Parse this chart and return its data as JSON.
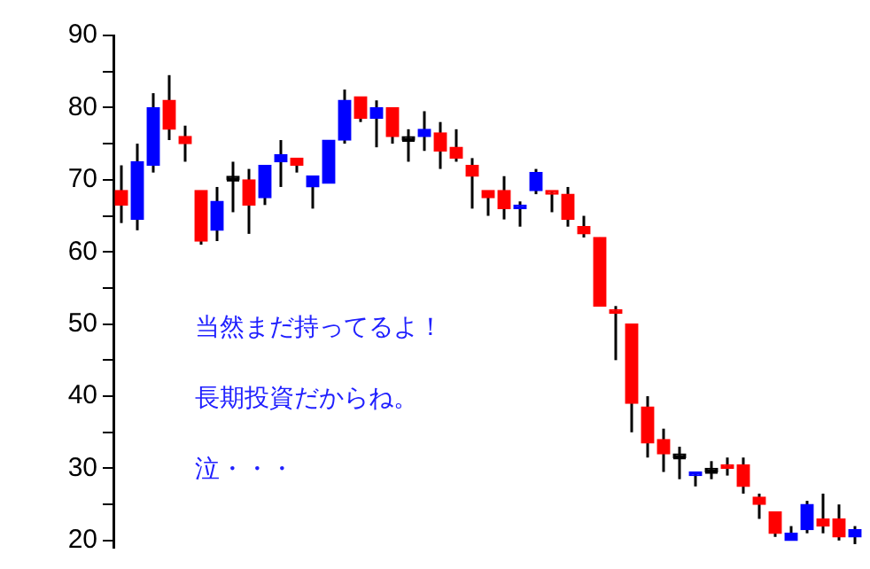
{
  "chart_data": {
    "type": "candlestick",
    "categories": [
      null,
      null,
      null,
      null,
      null,
      null,
      null,
      null,
      null,
      null,
      null,
      null,
      null,
      null,
      null,
      null,
      null,
      null,
      null,
      null,
      null,
      null,
      null,
      null,
      null,
      null,
      null,
      null,
      null,
      null,
      null,
      null,
      null,
      null,
      null,
      null,
      null,
      null,
      null,
      null,
      null,
      null,
      null,
      null,
      null,
      null,
      null
    ],
    "ohlc": [
      [
        68.5,
        72,
        64,
        66.5
      ],
      [
        64.5,
        75,
        63,
        72.5
      ],
      [
        72,
        82,
        71,
        80
      ],
      [
        81,
        84.5,
        75.5,
        77
      ],
      [
        76,
        77.5,
        72.5,
        75
      ],
      [
        68.5,
        68.5,
        61,
        61.5
      ],
      [
        63,
        69,
        61.5,
        67
      ],
      [
        70,
        72.5,
        65.5,
        70
      ],
      [
        70,
        71.5,
        62.5,
        66.5
      ],
      [
        67.5,
        72,
        66.5,
        72
      ],
      [
        72.5,
        75.5,
        69,
        73.5
      ],
      [
        73,
        73,
        71,
        72
      ],
      [
        69,
        70.5,
        66,
        70.5
      ],
      [
        69.5,
        75.5,
        69.5,
        75.5
      ],
      [
        75.5,
        82.5,
        75,
        81
      ],
      [
        81.5,
        81.5,
        78,
        78.5
      ],
      [
        78.5,
        81,
        74.5,
        80
      ],
      [
        80,
        80,
        75,
        76
      ],
      [
        75.5,
        77,
        72.5,
        75.5
      ],
      [
        76,
        79.5,
        74,
        77
      ],
      [
        76.5,
        78,
        71.5,
        74
      ],
      [
        74.5,
        77,
        72.5,
        73
      ],
      [
        72,
        73,
        66,
        70.5
      ],
      [
        68.5,
        68.5,
        65,
        67.5
      ],
      [
        68.5,
        70.5,
        64.5,
        66
      ],
      [
        66,
        67,
        63.5,
        66.5
      ],
      [
        68.5,
        71.5,
        68,
        71
      ],
      [
        68.5,
        68.5,
        65.5,
        68
      ],
      [
        68,
        69,
        63.5,
        64.5
      ],
      [
        63.5,
        65,
        62,
        62.5
      ],
      [
        62,
        62,
        52.5,
        52.5
      ],
      [
        52,
        52.5,
        45,
        51.5
      ],
      [
        50,
        50,
        35,
        39
      ],
      [
        38.5,
        40,
        31.5,
        33.5
      ],
      [
        34,
        35.5,
        29.5,
        32
      ],
      [
        31.5,
        33,
        28.5,
        31.5
      ],
      [
        29,
        29.5,
        27.5,
        29.5
      ],
      [
        29.5,
        31,
        28.5,
        29.5
      ],
      [
        30.5,
        31.5,
        29,
        30
      ],
      [
        30.5,
        31.5,
        26.5,
        27.5
      ],
      [
        26,
        26.5,
        23,
        25
      ],
      [
        24,
        24,
        20.5,
        21
      ],
      [
        20,
        22,
        20,
        21
      ],
      [
        21.5,
        25.5,
        21,
        25
      ],
      [
        23,
        26.5,
        21,
        22
      ],
      [
        23,
        25,
        20,
        20.5
      ],
      [
        20.5,
        22,
        19.5,
        21.5
      ]
    ],
    "colors": [
      "#ff0000",
      "#0000ff",
      "#0000ff",
      "#ff0000",
      "#ff0000",
      "#ff0000",
      "#0000ff",
      "#000000",
      "#ff0000",
      "#0000ff",
      "#0000ff",
      "#ff0000",
      "#0000ff",
      "#0000ff",
      "#0000ff",
      "#ff0000",
      "#0000ff",
      "#ff0000",
      "#000000",
      "#0000ff",
      "#ff0000",
      "#ff0000",
      "#ff0000",
      "#ff0000",
      "#ff0000",
      "#0000ff",
      "#0000ff",
      "#ff0000",
      "#ff0000",
      "#ff0000",
      "#ff0000",
      "#ff0000",
      "#ff0000",
      "#ff0000",
      "#ff0000",
      "#000000",
      "#0000ff",
      "#000000",
      "#ff0000",
      "#ff0000",
      "#ff0000",
      "#ff0000",
      "#0000ff",
      "#0000ff",
      "#ff0000",
      "#ff0000",
      "#0000ff"
    ],
    "ylim": [
      19,
      90
    ],
    "yticks": [
      20,
      {
        "value": 25,
        "label": null
      },
      30,
      {
        "value": 35,
        "label": null
      },
      40,
      {
        "value": 45,
        "label": null
      },
      50,
      {
        "value": 55,
        "label": null
      },
      60,
      {
        "value": 65,
        "label": null
      },
      70,
      {
        "value": 75,
        "label": null
      },
      80,
      {
        "value": 85,
        "label": null
      },
      90
    ],
    "tick_labels": "y",
    "grid": false,
    "legend": false,
    "annotations": [
      "当然まだ持ってるよ！",
      "長期投資だからね。",
      "泣・・・"
    ]
  }
}
